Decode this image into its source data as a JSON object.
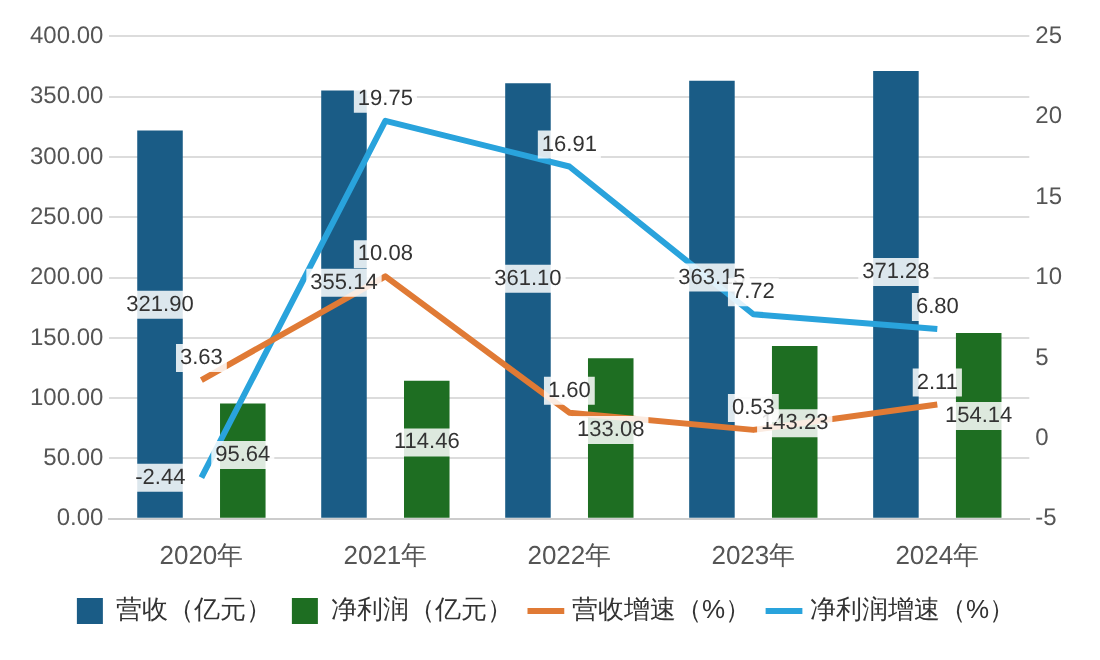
{
  "chart_data": {
    "type": "bar",
    "categories": [
      "2020年",
      "2021年",
      "2022年",
      "2023年",
      "2024年"
    ],
    "series": [
      {
        "name": "营收（亿元）",
        "color": "#1a5c86",
        "values": [
          321.9,
          355.14,
          361.1,
          363.15,
          371.28
        ],
        "value_labels": [
          "321.90",
          "355.14",
          "361.10",
          "363.15",
          "371.28"
        ]
      },
      {
        "name": "净利润（亿元）",
        "color": "#1e6e22",
        "values": [
          95.64,
          114.46,
          133.08,
          143.23,
          154.14
        ],
        "value_labels": [
          "95.64",
          "114.46",
          "133.08",
          "143.23",
          "154.14"
        ]
      },
      {
        "name": "营收增速（%）",
        "type": "line",
        "axis": "y2",
        "color": "#e07a35",
        "values": [
          3.63,
          10.08,
          1.6,
          0.53,
          2.11
        ],
        "value_labels": [
          "3.63",
          "10.08",
          "1.60",
          "0.53",
          "2.11"
        ]
      },
      {
        "name": "净利润增速（%）",
        "type": "line",
        "axis": "y2",
        "color": "#29a3dc",
        "values": [
          -2.44,
          19.75,
          16.91,
          7.72,
          6.8
        ],
        "value_labels": [
          "-2.44",
          "19.75",
          "16.91",
          "7.72",
          "6.80"
        ]
      }
    ],
    "ylim": [
      0,
      400
    ],
    "yticks": [
      {
        "value": 0,
        "label": "0.00"
      },
      {
        "value": 50,
        "label": "50.00"
      },
      {
        "value": 100,
        "label": "100.00"
      },
      {
        "value": 150,
        "label": "150.00"
      },
      {
        "value": 200,
        "label": "200.00"
      },
      {
        "value": 250,
        "label": "250.00"
      },
      {
        "value": 300,
        "label": "300.00"
      },
      {
        "value": 350,
        "label": "350.00"
      },
      {
        "value": 400,
        "label": "400.00"
      }
    ],
    "y2lim": [
      -5,
      25
    ],
    "y2ticks": [
      -5,
      0,
      5,
      10,
      15,
      20,
      25
    ],
    "grid": "y",
    "legend": "bottom",
    "marker": "none"
  }
}
